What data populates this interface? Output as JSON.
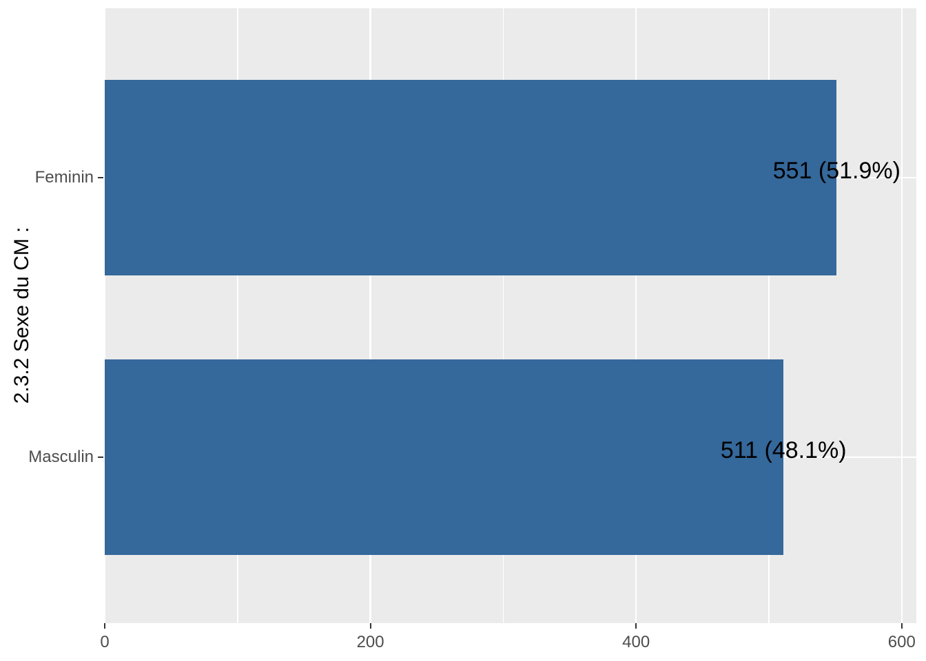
{
  "chart_data": {
    "type": "bar",
    "orientation": "horizontal",
    "title": "",
    "xlabel": "",
    "ylabel": "2.3.2 Sexe du CM :",
    "categories": [
      "Feminin",
      "Masculin"
    ],
    "values": [
      551,
      511
    ],
    "percentages": [
      51.9,
      48.1
    ],
    "bar_labels": [
      "551 (51.9%)",
      "511 (48.1%)"
    ],
    "x_major_ticks": [
      0,
      200,
      400,
      600
    ],
    "x_minor_ticks": [
      100,
      300,
      500
    ],
    "xlim": [
      0,
      611
    ],
    "grid": "on",
    "legend": "none",
    "colors": {
      "bar_fill": "#35689B",
      "panel_background": "#EBEBEB",
      "gridline": "#FFFFFF",
      "axis_text": "#4D4D4D",
      "axis_ticks": "#333333",
      "label_text": "#000000",
      "figure_background": "#FFFFFF"
    }
  }
}
